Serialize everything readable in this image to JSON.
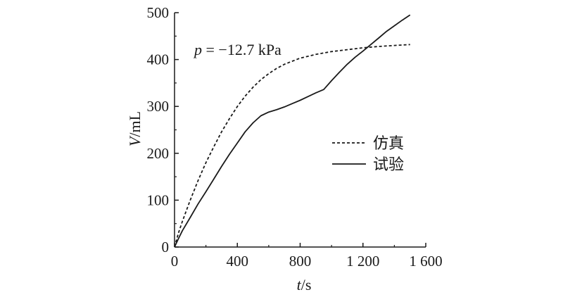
{
  "chart_data": {
    "type": "line",
    "xlabel": {
      "var": "t",
      "unit": "/s"
    },
    "ylabel": {
      "var": "V",
      "unit": "/mL"
    },
    "xlim": [
      0,
      1600
    ],
    "ylim": [
      0,
      500
    ],
    "xticks": [
      0,
      400,
      800,
      1200,
      1600
    ],
    "xtick_labels": [
      "0",
      "400",
      "800",
      "1 200",
      "1 600"
    ],
    "yticks": [
      0,
      100,
      200,
      300,
      400,
      500
    ],
    "ytick_labels": [
      "0",
      "100",
      "200",
      "300",
      "400",
      "500"
    ],
    "annotation": {
      "var": "p",
      "text": " = −12.7 kPa"
    },
    "grid": false,
    "legend_position": "center-right",
    "series": [
      {
        "name": "仿真",
        "style": "dashed",
        "color": "#1a1a1a",
        "x": [
          0,
          25,
          50,
          100,
          150,
          200,
          250,
          300,
          350,
          400,
          450,
          500,
          550,
          600,
          650,
          700,
          800,
          900,
          1000,
          1100,
          1200,
          1300,
          1400,
          1500
        ],
        "y": [
          0,
          30,
          55,
          100,
          142,
          180,
          214,
          246,
          274,
          300,
          322,
          341,
          357,
          370,
          381,
          390,
          403,
          411,
          417,
          421,
          425,
          428,
          430,
          432
        ]
      },
      {
        "name": "试验",
        "style": "solid",
        "color": "#1a1a1a",
        "x": [
          0,
          25,
          50,
          100,
          150,
          200,
          250,
          300,
          350,
          400,
          450,
          500,
          550,
          600,
          650,
          700,
          750,
          800,
          850,
          900,
          950,
          1000,
          1050,
          1100,
          1150,
          1200,
          1250,
          1300,
          1350,
          1400,
          1450,
          1500
        ],
        "y": [
          0,
          18,
          35,
          63,
          92,
          118,
          145,
          172,
          198,
          222,
          246,
          265,
          280,
          288,
          293,
          299,
          306,
          313,
          321,
          329,
          336,
          355,
          373,
          390,
          405,
          418,
          432,
          446,
          460,
          472,
          484,
          495
        ]
      }
    ]
  }
}
